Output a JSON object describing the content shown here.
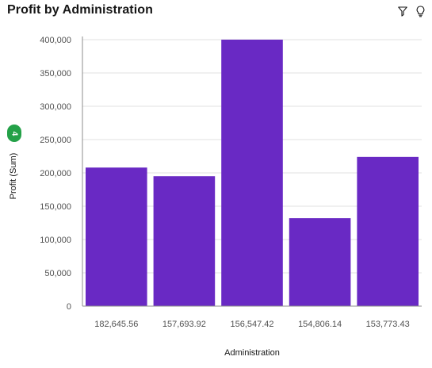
{
  "header": {
    "title": "Profit by Administration",
    "filter_icon": "filter-icon",
    "insight_icon": "lightbulb-icon"
  },
  "badge": {
    "count": "4"
  },
  "colors": {
    "bar": "#6929c4",
    "grid": "#e0e0e0",
    "axis": "#8d8d8d",
    "badge": "#24a148"
  },
  "chart_data": {
    "type": "bar",
    "title": "Profit by Administration",
    "xlabel": "Administration",
    "ylabel": "Profit (Sum)",
    "categories": [
      "182,645.56",
      "157,693.92",
      "156,547.42",
      "154,806.14",
      "153,773.43"
    ],
    "values": [
      208000,
      195000,
      400000,
      132000,
      224000
    ],
    "ylim": [
      0,
      400000
    ],
    "yticks": [
      0,
      50000,
      100000,
      150000,
      200000,
      250000,
      300000,
      350000,
      400000
    ],
    "ytick_labels": [
      "0",
      "50,000",
      "100,000",
      "150,000",
      "200,000",
      "250,000",
      "300,000",
      "350,000",
      "400,000"
    ],
    "grid": true,
    "legend": "none"
  }
}
